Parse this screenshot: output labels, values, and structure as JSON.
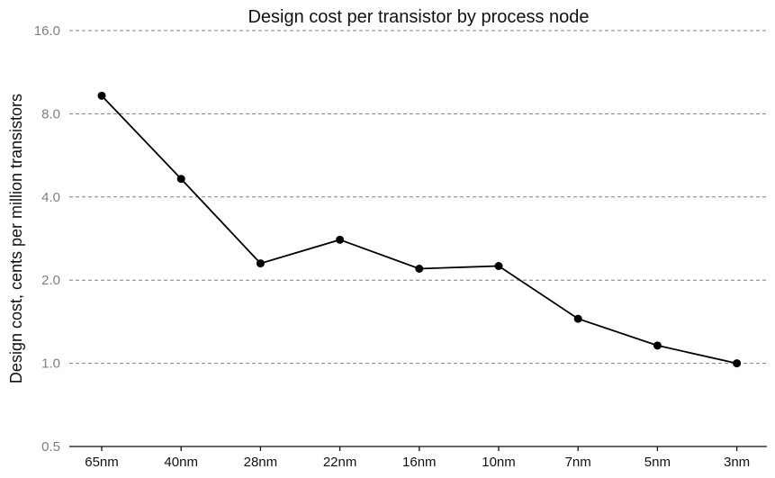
{
  "chart_data": {
    "type": "line",
    "title": "Design cost per transistor by process node",
    "xlabel": "",
    "ylabel": "Design cost, cents per million transistors",
    "yscale": "log2",
    "ylim": [
      0.5,
      16.0
    ],
    "yticks": [
      0.5,
      1.0,
      2.0,
      4.0,
      8.0,
      16.0
    ],
    "ytick_labels": [
      "0.5",
      "1.0",
      "2.0",
      "4.0",
      "8.0",
      "16.0"
    ],
    "categories": [
      "65nm",
      "40nm",
      "28nm",
      "22nm",
      "16nm",
      "10nm",
      "7nm",
      "5nm",
      "3nm"
    ],
    "series": [
      {
        "values": [
          9.3,
          4.65,
          2.3,
          2.8,
          2.2,
          2.25,
          1.45,
          1.16,
          1.0
        ]
      }
    ],
    "grid": "horizontal dashed",
    "colors": {
      "line": "#000000",
      "grid": "#7f7f7f",
      "tick_label": "#808080"
    }
  }
}
